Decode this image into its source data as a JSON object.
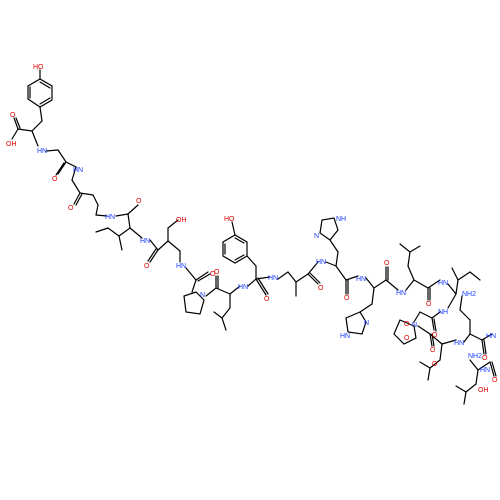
{
  "molecule": {
    "colors": {
      "oxygen": "#e00000",
      "nitrogen": "#1a3cff",
      "carbon": "#000000",
      "bond": "#000000",
      "background": "#ffffff"
    },
    "labels": {
      "tyr1_oh": "HO",
      "tyr1_acid_oh": "OH",
      "tyr1_acid_o": "O",
      "tyr1_nh": "HN",
      "gly1_o": "O",
      "gly1_nh": "HN",
      "gly2_o": "O",
      "gly2_nh": "HN",
      "ile1_o": "O",
      "ile1_nh": "HN",
      "ser1_oh": "OH",
      "ser1_o": "O",
      "ser1_nh": "HN",
      "pro1_o": "O",
      "pro1_n": "N",
      "leu1_o": "O",
      "leu1_nh": "HN",
      "tyr2_oh": "HO",
      "tyr2_o": "O",
      "tyr2_nh": "HN",
      "ala_o": "O",
      "ala_nh": "HN",
      "his1_nh_ring": "NH",
      "his1_n_ring": "N",
      "his1_o": "O",
      "his1_nh": "HN",
      "his2_nh_ring": "HN",
      "his2_n_ring": "N",
      "his2_o": "O",
      "his2_nh": "HN",
      "leu2_o": "O",
      "leu2_nh": "HN",
      "ile2_o": "O",
      "ile2_nh": "NH",
      "pro2_n": "N",
      "pro2_o": "O",
      "leu3_o": "O",
      "leu3_nh": "HN",
      "gln_nh2": "NH2",
      "gln_o": "O",
      "gln_co": "O",
      "gln_nh": "HN",
      "leu4_o": "O",
      "leu4_nh": "HN",
      "ser2_nh2": "NH2",
      "ser2_oh": "OH",
      "ser2_o": "O"
    }
  }
}
